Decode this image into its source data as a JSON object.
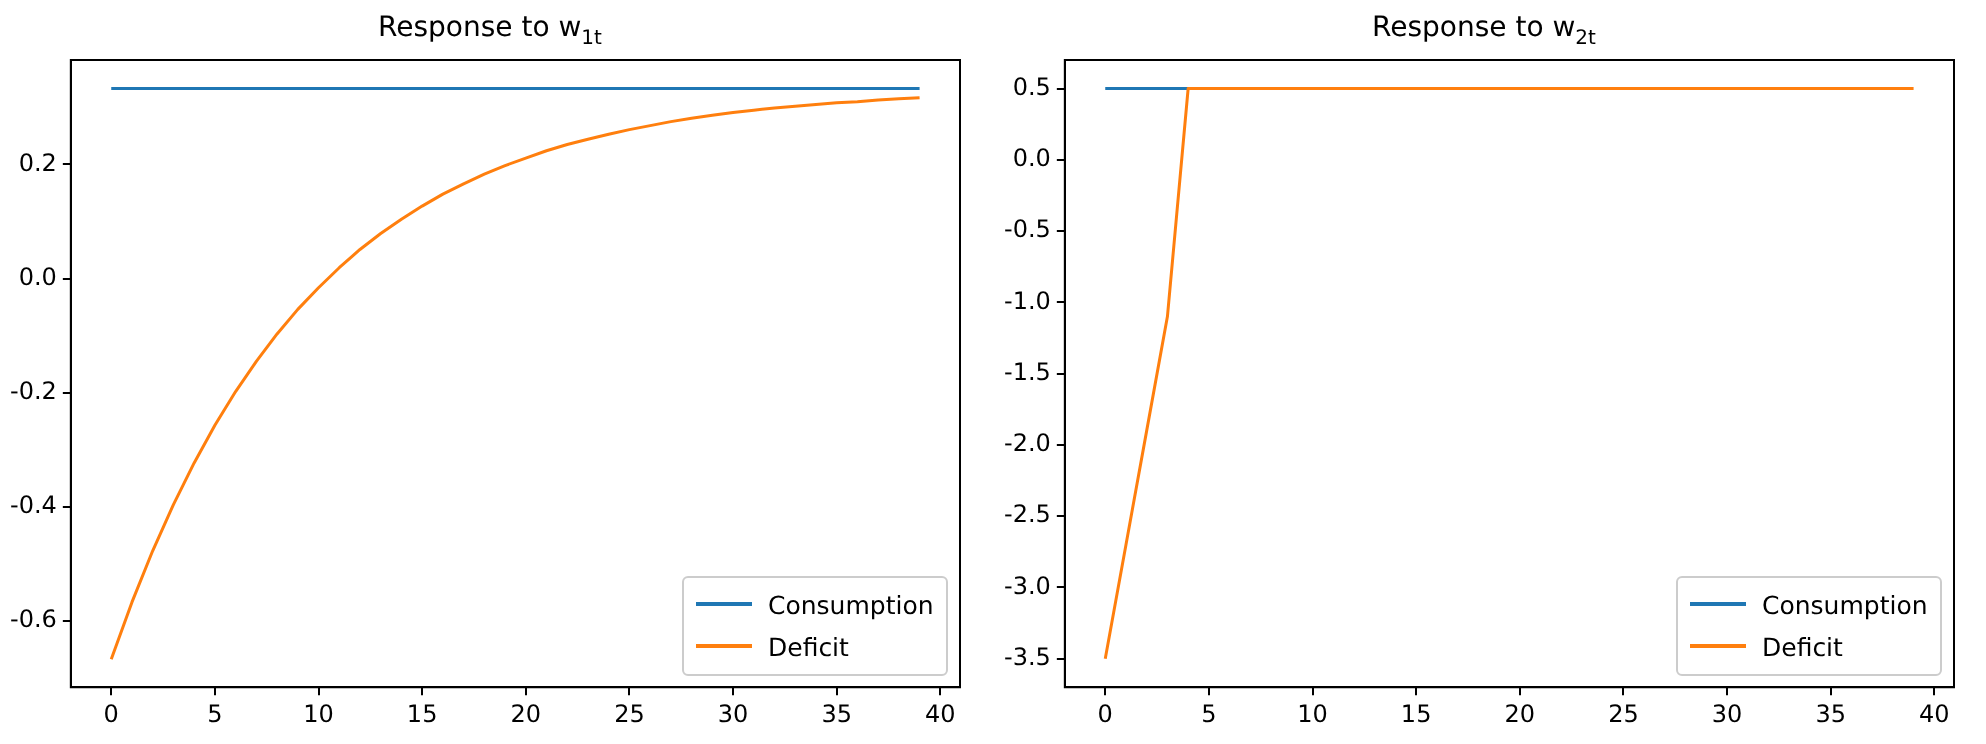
{
  "chart_data": [
    {
      "type": "line",
      "title": "Response to w$_{1t}$",
      "legend": "bottom right",
      "grid": false,
      "x": [
        0,
        1,
        2,
        3,
        4,
        5,
        6,
        7,
        8,
        9,
        10,
        11,
        12,
        13,
        14,
        15,
        16,
        17,
        18,
        19,
        20,
        21,
        22,
        23,
        24,
        25,
        26,
        27,
        28,
        29,
        30,
        31,
        32,
        33,
        34,
        35,
        36,
        37,
        38,
        39
      ],
      "xlim": [
        -1.95,
        40.95
      ],
      "xticks": [
        0,
        5,
        10,
        15,
        20,
        25,
        30,
        35,
        40
      ],
      "ylim": [
        -0.716,
        0.383
      ],
      "yticks": [
        -0.6,
        -0.4,
        -0.2,
        {
          "value": 0,
          "label": "0.0"
        },
        0.2
      ],
      "series": [
        {
          "name": "Consumption",
          "color": "#1f77b4",
          "values": [
            0.333,
            0.333,
            0.333,
            0.333,
            0.333,
            0.333,
            0.333,
            0.333,
            0.333,
            0.333,
            0.333,
            0.333,
            0.333,
            0.333,
            0.333,
            0.333,
            0.333,
            0.333,
            0.333,
            0.333,
            0.333,
            0.333,
            0.333,
            0.333,
            0.333,
            0.333,
            0.333,
            0.333,
            0.333,
            0.333,
            0.333,
            0.333,
            0.333,
            0.333,
            0.333,
            0.333,
            0.333,
            0.333,
            0.333,
            0.333
          ]
        },
        {
          "name": "Deficit",
          "color": "#ff7f0e",
          "values": [
            -0.667,
            -0.567,
            -0.477,
            -0.396,
            -0.323,
            -0.257,
            -0.198,
            -0.145,
            -0.097,
            -0.054,
            -0.016,
            0.019,
            0.051,
            0.079,
            0.104,
            0.127,
            0.148,
            0.166,
            0.183,
            0.198,
            0.211,
            0.224,
            0.235,
            0.244,
            0.253,
            0.261,
            0.268,
            0.275,
            0.281,
            0.286,
            0.291,
            0.295,
            0.299,
            0.302,
            0.305,
            0.308,
            0.31,
            0.313,
            0.315,
            0.317
          ]
        }
      ]
    },
    {
      "type": "line",
      "title": "Response to w$_{2t}$",
      "legend": "bottom right",
      "grid": false,
      "x": [
        0,
        1,
        2,
        3,
        4,
        5,
        6,
        7,
        8,
        9,
        10,
        11,
        12,
        13,
        14,
        15,
        16,
        17,
        18,
        19,
        20,
        21,
        22,
        23,
        24,
        25,
        26,
        27,
        28,
        29,
        30,
        31,
        32,
        33,
        34,
        35,
        36,
        37,
        38,
        39
      ],
      "xlim": [
        -1.95,
        40.95
      ],
      "xticks": [
        0,
        5,
        10,
        15,
        20,
        25,
        30,
        35,
        40
      ],
      "ylim": [
        -3.7,
        0.7
      ],
      "yticks": [
        -3.5,
        {
          "value": -3,
          "label": "-3.0"
        },
        -2.5,
        {
          "value": -2,
          "label": "-2.0"
        },
        -1.5,
        {
          "value": -1,
          "label": "-1.0"
        },
        -0.5,
        {
          "value": 0,
          "label": "0.0"
        },
        0.5
      ],
      "series": [
        {
          "name": "Consumption",
          "color": "#1f77b4",
          "values": [
            0.5,
            0.5,
            0.5,
            0.5,
            0.5,
            null,
            null,
            null,
            null,
            null,
            null,
            null,
            null,
            null,
            null,
            null,
            null,
            null,
            null,
            null,
            null,
            null,
            null,
            null,
            null,
            null,
            null,
            null,
            null,
            null,
            null,
            null,
            null,
            null,
            null,
            null,
            null,
            null,
            null,
            null
          ]
        },
        {
          "name": "Deficit",
          "color": "#ff7f0e",
          "values": [
            -3.5,
            -2.7,
            -1.9,
            -1.1,
            0.5,
            0.5,
            0.5,
            0.5,
            0.5,
            0.5,
            0.5,
            0.5,
            0.5,
            0.5,
            0.5,
            0.5,
            0.5,
            0.5,
            0.5,
            0.5,
            0.5,
            0.5,
            0.5,
            0.5,
            0.5,
            0.5,
            0.5,
            0.5,
            0.5,
            0.5,
            0.5,
            0.5,
            0.5,
            0.5,
            0.5,
            0.5,
            0.5,
            0.5,
            0.5,
            0.5
          ]
        }
      ]
    }
  ]
}
